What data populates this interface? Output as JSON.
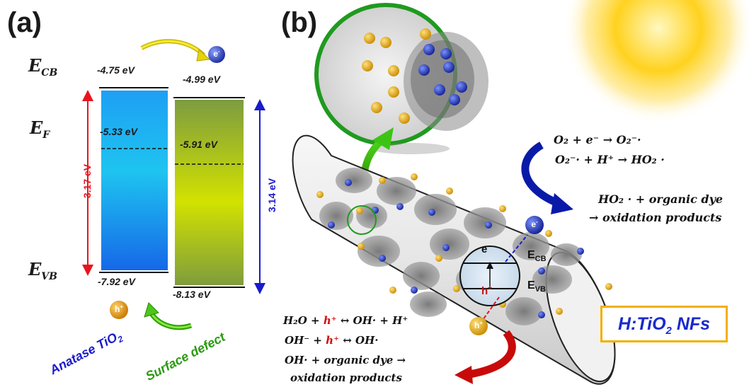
{
  "panel_a": {
    "label": "(a)",
    "levels": {
      "ecb": "E",
      "ecb_sub": "CB",
      "ef": "E",
      "ef_sub": "F",
      "evb": "E",
      "evb_sub": "VB"
    },
    "anatase": {
      "cb": "-4.75 eV",
      "ef": "-5.33 eV",
      "vb": "-7.92 eV",
      "gap": "3.17 eV",
      "name_main": "Anatase TiO",
      "name_sub": "2"
    },
    "defect": {
      "cb": "-4.99 eV",
      "ef": "-5.91 eV",
      "vb": "-8.13 eV",
      "gap": "3.14 eV",
      "name": "Surface defect"
    },
    "electron_symbol": "e",
    "electron_sup": "-",
    "hole_symbol": "h",
    "hole_sup": "+",
    "colors": {
      "anatase_gap": "#e8141e",
      "defect_gap": "#1a1acc",
      "anatase_top": "#17a8f0",
      "defect_top": "#8aa63a",
      "defect_bottom": "#d6e600"
    }
  },
  "panel_b": {
    "label": "(b)",
    "inner_ecb": "E",
    "inner_ecb_sub": "CB",
    "inner_evb": "E",
    "inner_evb_sub": "VB",
    "badge": {
      "main": "H:TiO",
      "sub": "2",
      "tail": " NFs"
    },
    "eq_right": {
      "l1": "O₂ + e⁻ → O₂⁻·",
      "l2": "O₂⁻· + H⁺ → HO₂ ·",
      "l3": "HO₂ · + organic dye",
      "l4": "→ oxidation products"
    },
    "eq_left": {
      "l1a": "H₂O + ",
      "l1b": "h⁺",
      "l1c": " ↔ OH· + H⁺",
      "l2a": "OH⁻ + ",
      "l2b": "h⁺",
      "l2c": " ↔ OH·",
      "l3": "OH· + organic dye →",
      "l4": "oxidation products"
    }
  }
}
